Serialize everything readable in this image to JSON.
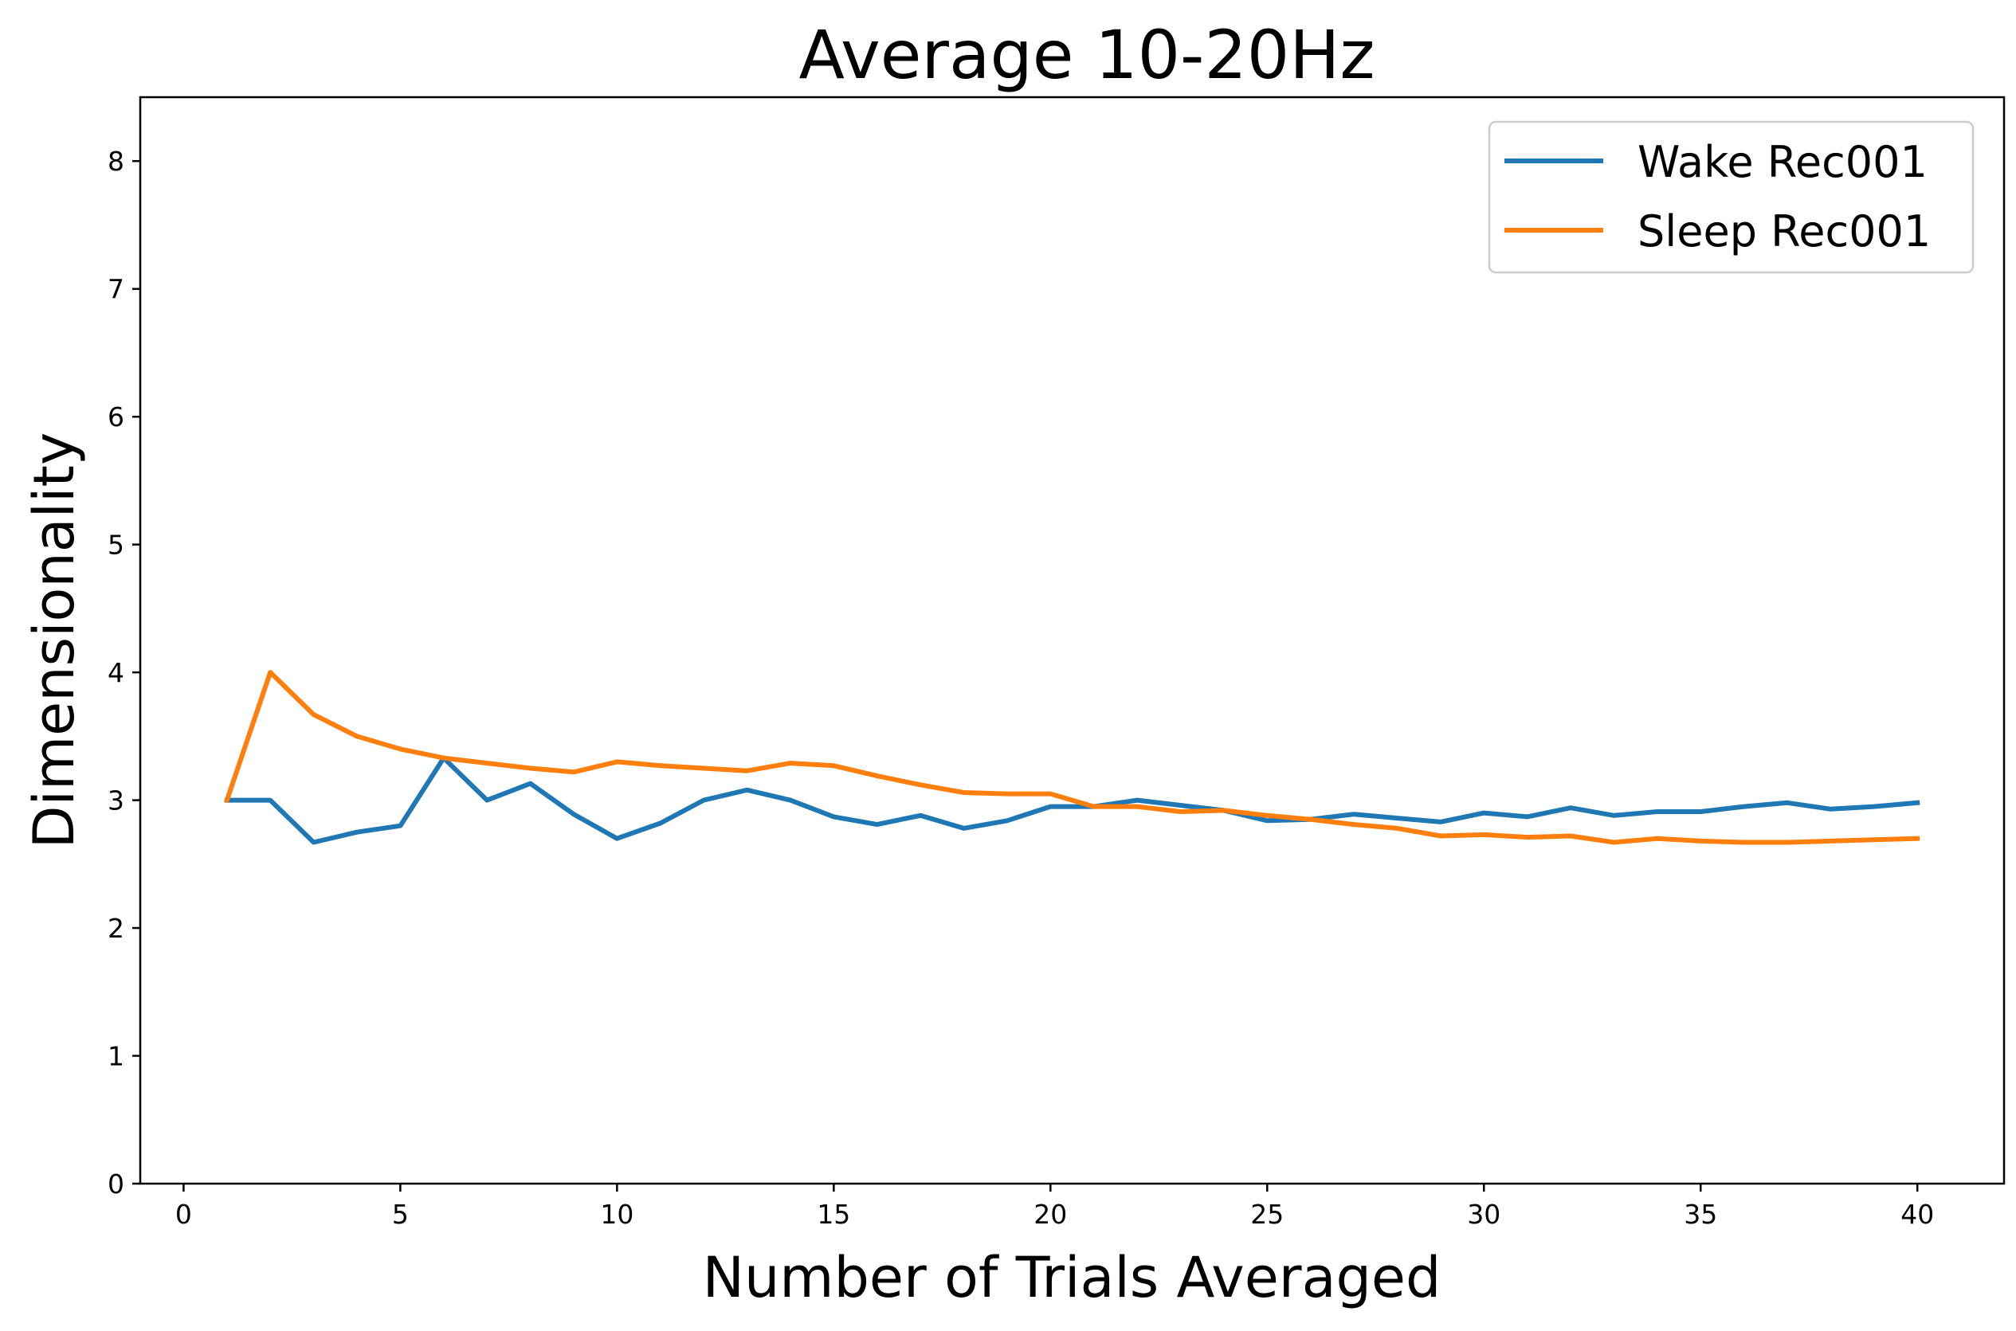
{
  "chart_data": {
    "type": "line",
    "title": "Average 10-20Hz",
    "xlabel": "Number of Trials Averaged",
    "ylabel": "Dimensionality",
    "xlim": [
      -1,
      42
    ],
    "ylim": [
      0,
      8.5
    ],
    "xticks": [
      0,
      5,
      10,
      15,
      20,
      25,
      30,
      35,
      40
    ],
    "yticks": [
      0,
      1,
      2,
      3,
      4,
      5,
      6,
      7,
      8
    ],
    "grid": false,
    "legend_position": "top-right",
    "series": [
      {
        "name": "Wake Rec001",
        "color": "#1f77b4",
        "x": [
          1,
          2,
          3,
          4,
          5,
          6,
          7,
          8,
          9,
          10,
          11,
          12,
          13,
          14,
          15,
          16,
          17,
          18,
          19,
          20,
          21,
          22,
          23,
          24,
          25,
          26,
          27,
          28,
          29,
          30,
          31,
          32,
          33,
          34,
          35,
          36,
          37,
          38,
          39,
          40
        ],
        "values": [
          3.0,
          3.0,
          2.67,
          2.75,
          2.8,
          3.33,
          3.0,
          3.13,
          2.89,
          2.7,
          2.82,
          3.0,
          3.08,
          3.0,
          2.87,
          2.81,
          2.88,
          2.78,
          2.84,
          2.95,
          2.95,
          3.0,
          2.96,
          2.92,
          2.84,
          2.85,
          2.89,
          2.86,
          2.83,
          2.9,
          2.87,
          2.94,
          2.88,
          2.91,
          2.91,
          2.95,
          2.98,
          2.93,
          2.95,
          2.98
        ]
      },
      {
        "name": "Sleep Rec001",
        "color": "#ff7f0e",
        "x": [
          1,
          2,
          3,
          4,
          5,
          6,
          7,
          8,
          9,
          10,
          11,
          12,
          13,
          14,
          15,
          16,
          17,
          18,
          19,
          20,
          21,
          22,
          23,
          24,
          25,
          26,
          27,
          28,
          29,
          30,
          31,
          32,
          33,
          34,
          35,
          36,
          37,
          38,
          39,
          40
        ],
        "values": [
          3.0,
          4.0,
          3.67,
          3.5,
          3.4,
          3.33,
          3.29,
          3.25,
          3.22,
          3.3,
          3.27,
          3.25,
          3.23,
          3.29,
          3.27,
          3.19,
          3.12,
          3.06,
          3.05,
          3.05,
          2.95,
          2.95,
          2.91,
          2.92,
          2.88,
          2.85,
          2.81,
          2.78,
          2.72,
          2.73,
          2.71,
          2.72,
          2.67,
          2.7,
          2.68,
          2.67,
          2.67,
          2.68,
          2.69,
          2.7
        ]
      }
    ]
  }
}
